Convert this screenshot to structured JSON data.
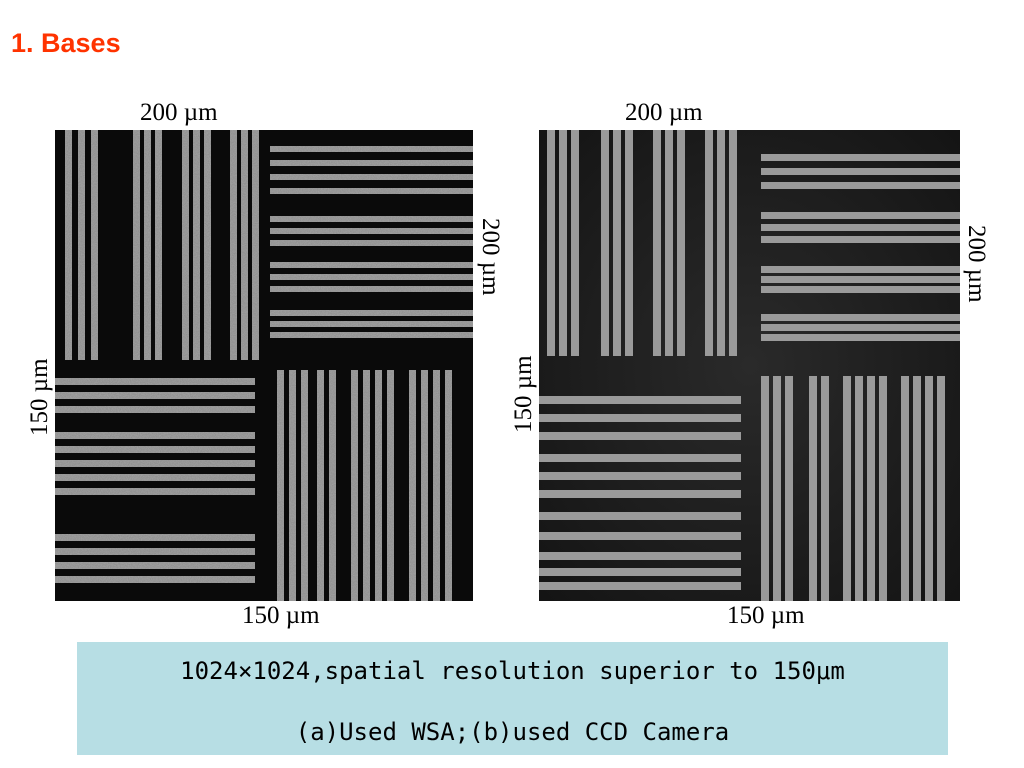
{
  "slide": {
    "title": "1. Bases",
    "title_color": "#ff3300"
  },
  "panels": [
    {
      "label_top": "200 µm",
      "label_right": "200 µm",
      "label_left": "150 µm",
      "label_bottom": "150 µm"
    },
    {
      "label_top": "200 µm",
      "label_right": "200 µm",
      "label_left": "150 µm",
      "label_bottom": "150 µm"
    }
  ],
  "caption": {
    "line1": "1024×1024,spatial resolution superior to 150μm",
    "line2": "(a)Used WSA;(b)used CCD Camera",
    "background": "#b7dee4"
  }
}
